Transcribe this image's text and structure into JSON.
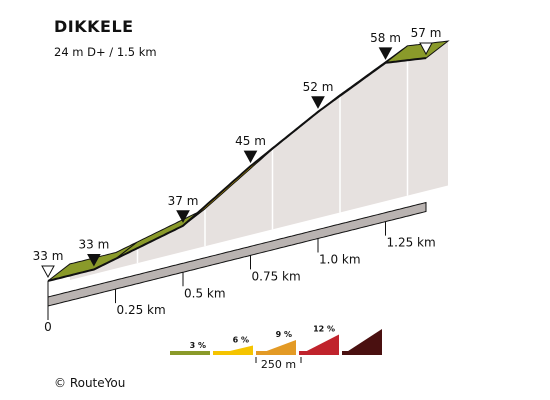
{
  "header": {
    "title": "DIKKELE",
    "subtitle": "24 m D+ / 1.5 km"
  },
  "footer": {
    "copyright": "© RouteYou"
  },
  "chart_data": {
    "type": "area",
    "title": "DIKKELE",
    "subtitle": "24 m D+ / 1.5 km",
    "x": [
      0,
      0.17,
      0.5,
      0.75,
      1.0,
      1.25,
      1.4
    ],
    "y": [
      33,
      33,
      37,
      45,
      52,
      58,
      57
    ],
    "xlim": [
      0,
      1.5
    ],
    "ylim": [
      30,
      60
    ],
    "x_ticks": [
      "0",
      "0.25 km",
      "0.5 km",
      "0.75 km",
      "1.0 km",
      "1.25 km"
    ],
    "elevation_labels": [
      "33 m",
      "33 m",
      "37 m",
      "45 m",
      "52 m",
      "58 m",
      "57 m"
    ],
    "segments": [
      {
        "from": 0,
        "to": 0.25,
        "gradient_class": "0-3 %"
      },
      {
        "from": 0.25,
        "to": 0.5,
        "gradient_class": "0-3 %"
      },
      {
        "from": 0.5,
        "to": 0.75,
        "gradient_class": "3-6 %"
      },
      {
        "from": 0.75,
        "to": 1.0,
        "gradient_class": "3-6 %"
      },
      {
        "from": 1.0,
        "to": 1.25,
        "gradient_class": "0-3 %"
      },
      {
        "from": 1.25,
        "to": 1.5,
        "gradient_class": "0-3 %"
      }
    ],
    "legend": {
      "items": [
        {
          "label": "3 %",
          "color": "#8a9a2a"
        },
        {
          "label": "6 %",
          "color": "#f5c400"
        },
        {
          "label": "9 %",
          "color": "#e39a25"
        },
        {
          "label": "12 %",
          "color": "#c0232c"
        },
        {
          "label": "",
          "color": "#4a1010"
        }
      ],
      "scale_label": "250 m"
    },
    "colors": {
      "olive": "#8a9a2a",
      "yellow": "#ffcc00",
      "side": "#e6e1df",
      "outline": "#111111"
    }
  }
}
